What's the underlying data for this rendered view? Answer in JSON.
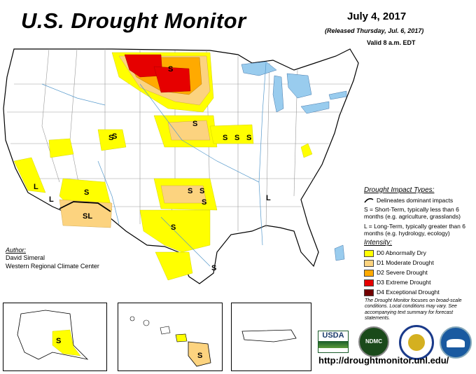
{
  "header": {
    "title": "U.S. Drought Monitor",
    "date": "July 4, 2017",
    "released": "(Released Thursday, Jul. 6, 2017)",
    "valid": "Valid 8 a.m. EDT"
  },
  "map": {
    "labels": [
      {
        "id": "s-north-dakota",
        "text": "S"
      },
      {
        "id": "s-montana",
        "text": "S"
      },
      {
        "id": "s-utah",
        "text": "S"
      },
      {
        "id": "s-nebraska",
        "text": "S"
      },
      {
        "id": "s-iowa-1",
        "text": "S"
      },
      {
        "id": "s-iowa-2",
        "text": "S"
      },
      {
        "id": "s-iowa-3",
        "text": "S"
      },
      {
        "id": "l-california",
        "text": "L"
      },
      {
        "id": "l-california-2",
        "text": "L"
      },
      {
        "id": "s-arizona",
        "text": "S"
      },
      {
        "id": "sl-arizona",
        "text": "SL"
      },
      {
        "id": "s-oklahoma-1",
        "text": "S"
      },
      {
        "id": "s-oklahoma-2",
        "text": "S"
      },
      {
        "id": "s-oklahoma-3",
        "text": "S"
      },
      {
        "id": "s-texas",
        "text": "S"
      },
      {
        "id": "s-texas-coast",
        "text": "S"
      },
      {
        "id": "l-mississippi",
        "text": "L"
      }
    ]
  },
  "legend": {
    "impact_title": "Drought Impact Types:",
    "delineates": "Delineates dominant impacts",
    "s_desc": "S = Short-Term, typically less than 6 months (e.g. agriculture, grasslands)",
    "l_desc": "L = Long-Term, typically greater than 6 months (e.g. hydrology, ecology)",
    "intensity_title": "Intensity:",
    "categories": [
      {
        "label": "D0 Abnormally Dry",
        "color": "#ffff00"
      },
      {
        "label": "D1 Moderate Drought",
        "color": "#fcd37f"
      },
      {
        "label": "D2 Severe Drought",
        "color": "#ffaa00"
      },
      {
        "label": "D3 Extreme Drought",
        "color": "#e60000"
      },
      {
        "label": "D4 Exceptional Drought",
        "color": "#730000"
      }
    ]
  },
  "author": {
    "heading": "Author:",
    "name": "David Simeral",
    "org": "Western Regional Climate Center"
  },
  "note": "The Drought Monitor focuses on broad-scale conditions. Local conditions may vary. See accompanying text summary for forecast statements.",
  "insets": {
    "alaska_label": "S",
    "hawaii_label": "S"
  },
  "logos": {
    "usda": "USDA",
    "ndmc": "NDMC"
  },
  "url": "http://droughtmonitor.unl.edu/",
  "colors": {
    "water": "#99ccee",
    "d0": "#ffff00",
    "d1": "#fcd37f",
    "d2": "#ffaa00",
    "d3": "#e60000",
    "d4": "#730000"
  }
}
